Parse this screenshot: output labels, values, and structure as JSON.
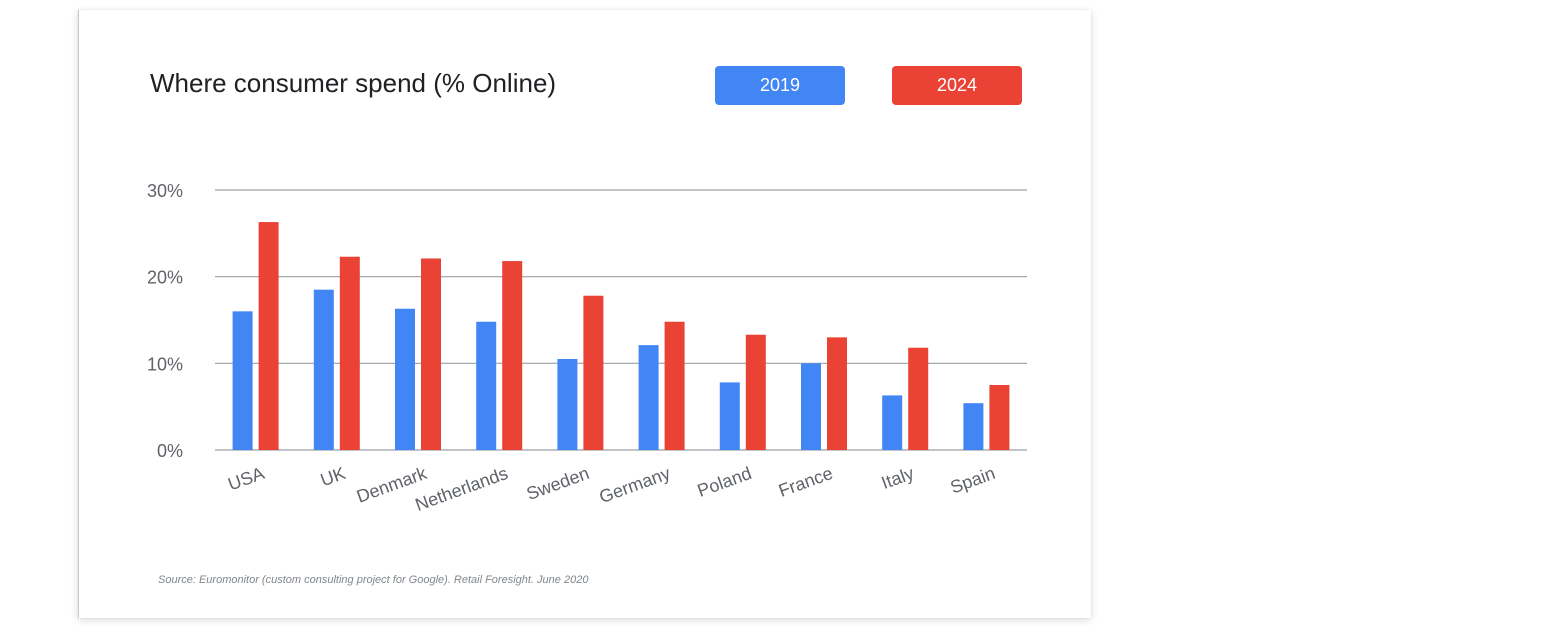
{
  "colors": {
    "series_2019": "#4285f4",
    "series_2024": "#ea4335",
    "grid": "#9aa0a6",
    "tick_text": "#5f6368"
  },
  "source_note": "Source: Euromonitor (custom consulting project for Google). Retail Foresight. June 2020",
  "chart_data": {
    "type": "bar",
    "title": "Where consumer spend (% Online)",
    "xlabel": "",
    "ylabel": "",
    "ylim": [
      0,
      30
    ],
    "yticks": [
      "0%",
      "10%",
      "20%",
      "30%"
    ],
    "ytick_values": [
      0,
      10,
      20,
      30
    ],
    "grid": true,
    "legend_position": "top-right",
    "categories": [
      "USA",
      "UK",
      "Denmark",
      "Netherlands",
      "Sweden",
      "Germany",
      "Poland",
      "France",
      "Italy",
      "Spain"
    ],
    "series": [
      {
        "name": "2019",
        "values": [
          16,
          18.5,
          16.3,
          14.8,
          10.5,
          12.1,
          7.8,
          10.0,
          6.3,
          5.4
        ]
      },
      {
        "name": "2024",
        "values": [
          26.3,
          22.3,
          22.1,
          21.8,
          17.8,
          14.8,
          13.3,
          13.0,
          11.8,
          7.5
        ]
      }
    ]
  }
}
